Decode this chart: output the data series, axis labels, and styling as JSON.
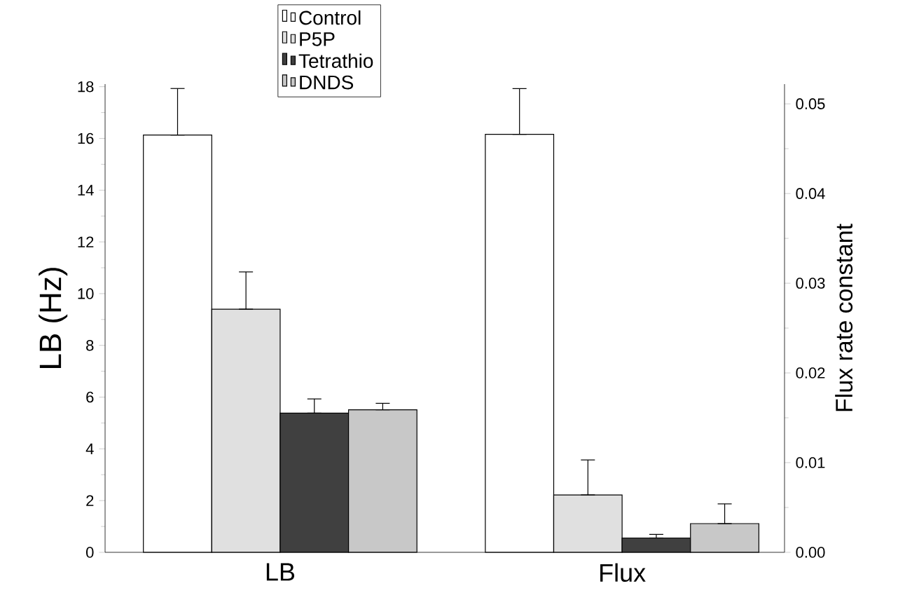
{
  "chart_data": {
    "type": "bar",
    "ylabel": "LB (Hz)",
    "y2label": "Flux rate constant",
    "categories": [
      "LB",
      "Flux"
    ],
    "series": [
      {
        "name": "Control",
        "color": "#ffffff",
        "axis": "y",
        "values": [
          16.13,
          null
        ],
        "errors": [
          [
            16.13,
            17.93
          ],
          null
        ]
      },
      {
        "name": "P5P",
        "color": "#e0e0e0",
        "axis": "y",
        "values": [
          9.4,
          null
        ],
        "errors": [
          [
            9.4,
            10.84
          ],
          null
        ]
      },
      {
        "name": "Tetrathio",
        "color": "#404040",
        "axis": "y",
        "values": [
          5.38,
          null
        ],
        "errors": [
          [
            5.38,
            5.93
          ],
          null
        ]
      },
      {
        "name": "DNDS",
        "color": "#c8c8c8",
        "axis": "y",
        "values": [
          5.51,
          null
        ],
        "errors": [
          [
            5.51,
            5.76
          ],
          null
        ]
      },
      {
        "color": "#ffffff",
        "axis": "y2",
        "values": [
          null,
          0.0466
        ],
        "errors": [
          null,
          [
            0.0466,
            0.0517
          ]
        ]
      },
      {
        "color": "#e0e0e0",
        "axis": "y2",
        "values": [
          null,
          0.0064
        ],
        "errors": [
          null,
          [
            0.0064,
            0.0103
          ]
        ]
      },
      {
        "color": "#404040",
        "axis": "y2",
        "values": [
          null,
          0.0016
        ],
        "errors": [
          null,
          [
            0.0016,
            0.002
          ]
        ]
      },
      {
        "color": "#c8c8c8",
        "axis": "y2",
        "values": [
          null,
          0.0032
        ],
        "errors": [
          null,
          [
            0.0032,
            0.0054
          ]
        ]
      }
    ],
    "ylim": [
      0,
      18.1
    ],
    "yticks": [
      0,
      2,
      4,
      6,
      8,
      10,
      12,
      14,
      16,
      18
    ],
    "y2lim": [
      0,
      0.0522
    ],
    "y2ticks": [
      {
        "value": 0,
        "label": "0.00"
      },
      {
        "value": 0.01,
        "label": "0.01"
      },
      {
        "value": 0.02,
        "label": "0.02"
      },
      {
        "value": 0.03,
        "label": "0.03"
      },
      {
        "value": 0.04,
        "label": "0.04"
      },
      {
        "value": 0.05,
        "label": "0.05"
      }
    ],
    "legend": "top",
    "grid": false
  }
}
